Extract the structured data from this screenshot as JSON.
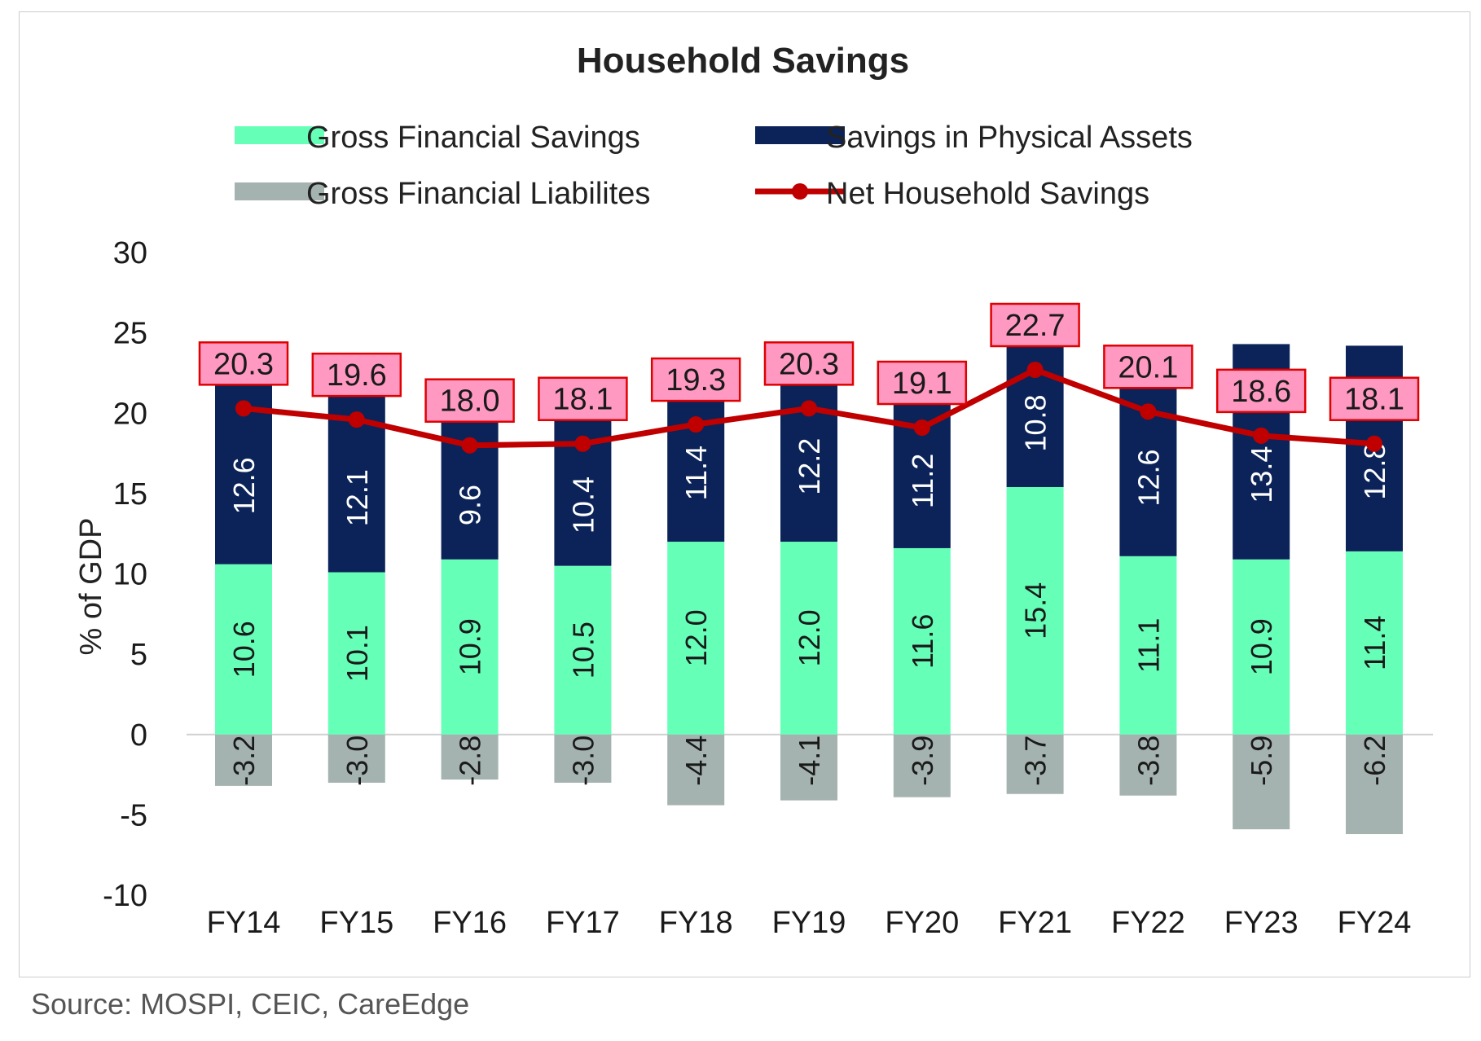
{
  "source_note": "Source: MOSPI, CEIC, CareEdge",
  "colors": {
    "gross_financial_savings": "#66ffb8",
    "physical_assets": "#0b2358",
    "liabilities": "#a5b3b0",
    "net_line": "#c00000",
    "net_label_fill": "#ff99c2",
    "net_label_border": "#e00000",
    "axis_text": "#1a1a1a",
    "zero_line": "#d0d0d0"
  },
  "chart_data": {
    "type": "bar",
    "stacked": true,
    "title": "Household Savings",
    "ylabel": "% of GDP",
    "xlabel": "",
    "ylim": [
      -10,
      30
    ],
    "yticks": [
      30,
      25,
      20,
      15,
      10,
      5,
      0,
      -5,
      -10
    ],
    "grid": false,
    "legend_position": "top",
    "categories": [
      "FY14",
      "FY15",
      "FY16",
      "FY17",
      "FY18",
      "FY19",
      "FY20",
      "FY21",
      "FY22",
      "FY23",
      "FY24"
    ],
    "series": [
      {
        "name": "Gross Financial Savings",
        "type": "bar",
        "values": [
          10.6,
          10.1,
          10.9,
          10.5,
          12.0,
          12.0,
          11.6,
          15.4,
          11.1,
          10.9,
          11.4
        ],
        "labels": [
          "10.6",
          "10.1",
          "10.9",
          "10.5",
          "12.0",
          "12.0",
          "11.6",
          "15.4",
          "11.1",
          "10.9",
          "11.4"
        ]
      },
      {
        "name": "Savings in Physical Assets",
        "type": "bar",
        "values": [
          12.6,
          12.1,
          9.6,
          10.4,
          11.4,
          12.2,
          11.2,
          10.8,
          12.6,
          13.4,
          12.8
        ],
        "labels": [
          "12.6",
          "12.1",
          "9.6",
          "10.4",
          "11.4",
          "12.2",
          "11.2",
          "10.8",
          "12.6",
          "13.4",
          "12.8"
        ]
      },
      {
        "name": "Gross Financial Liabilites",
        "type": "bar",
        "values": [
          -3.2,
          -3.0,
          -2.8,
          -3.0,
          -4.4,
          -4.1,
          -3.9,
          -3.7,
          -3.8,
          -5.9,
          -6.2
        ],
        "labels": [
          "-3.2",
          "-3.0",
          "-2.8",
          "-3.0",
          "-4.4",
          "-4.1",
          "-3.9",
          "-3.7",
          "-3.8",
          "-5.9",
          "-6.2"
        ]
      },
      {
        "name": "Net Household Savings",
        "type": "line",
        "values": [
          20.3,
          19.6,
          18.0,
          18.1,
          19.3,
          20.3,
          19.1,
          22.7,
          20.1,
          18.6,
          18.1
        ],
        "labels": [
          "20.3",
          "19.6",
          "18.0",
          "18.1",
          "19.3",
          "20.3",
          "19.1",
          "22.7",
          "20.1",
          "18.6",
          "18.1"
        ]
      }
    ]
  }
}
